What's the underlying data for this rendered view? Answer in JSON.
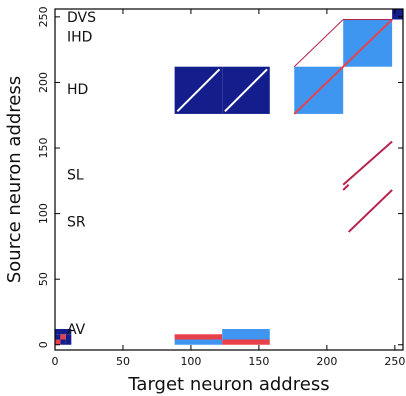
{
  "chart_data": {
    "type": "heatmap",
    "xlabel": "Target neuron address",
    "ylabel": "Source neuron address",
    "xlim": [
      0,
      256
    ],
    "ylim": [
      -4,
      256
    ],
    "xticks": [
      0,
      50,
      100,
      150,
      200,
      250
    ],
    "yticks": [
      0,
      50,
      100,
      150,
      200,
      250
    ],
    "grid": false,
    "colors": {
      "dark_blue": "#141d8c",
      "light_blue": "#3e96f0",
      "red": "#e8414a",
      "crimson": "#b8234b",
      "white": "#ffffff"
    },
    "region_labels": [
      {
        "text": "DVS",
        "y": 250
      },
      {
        "text": "IHD",
        "y": 235
      },
      {
        "text": "HD",
        "y": 195
      },
      {
        "text": "SL",
        "y": 130
      },
      {
        "text": "SR",
        "y": 94
      },
      {
        "text": "AV",
        "y": 12
      }
    ],
    "blocks": [
      {
        "x": [
          88,
          123
        ],
        "y": [
          176,
          212
        ],
        "color": "dark_blue"
      },
      {
        "x": [
          123,
          158
        ],
        "y": [
          176,
          212
        ],
        "color": "dark_blue"
      },
      {
        "x": [
          176,
          212
        ],
        "y": [
          176,
          212
        ],
        "color": "light_blue"
      },
      {
        "x": [
          212,
          248
        ],
        "y": [
          212,
          248
        ],
        "color": "light_blue"
      },
      {
        "x": [
          88,
          123
        ],
        "y": [
          0,
          4
        ],
        "color": "light_blue"
      },
      {
        "x": [
          88,
          123
        ],
        "y": [
          4,
          8
        ],
        "color": "red"
      },
      {
        "x": [
          123,
          158
        ],
        "y": [
          0,
          4
        ],
        "color": "red"
      },
      {
        "x": [
          123,
          158
        ],
        "y": [
          4,
          12
        ],
        "color": "light_blue"
      },
      {
        "x": [
          248,
          256
        ],
        "y": [
          248,
          256
        ],
        "color": "dark_blue"
      },
      {
        "x": [
          0,
          4
        ],
        "y": [
          0,
          4
        ],
        "color": "red"
      },
      {
        "x": [
          4,
          8
        ],
        "y": [
          0,
          4
        ],
        "color": "dark_blue"
      },
      {
        "x": [
          0,
          4
        ],
        "y": [
          4,
          8
        ],
        "color": "dark_blue"
      },
      {
        "x": [
          4,
          8
        ],
        "y": [
          4,
          8
        ],
        "color": "red"
      },
      {
        "x": [
          8,
          12
        ],
        "y": [
          0,
          4
        ],
        "color": "dark_blue"
      },
      {
        "x": [
          8,
          12
        ],
        "y": [
          4,
          8
        ],
        "color": "dark_blue"
      },
      {
        "x": [
          0,
          12
        ],
        "y": [
          8,
          12
        ],
        "color": "dark_blue"
      }
    ],
    "lines": [
      {
        "x": [
          90,
          121
        ],
        "y": [
          178,
          210
        ],
        "color": "white",
        "width": 2
      },
      {
        "x": [
          125,
          156
        ],
        "y": [
          178,
          210
        ],
        "color": "white",
        "width": 2
      },
      {
        "x": [
          176,
          248
        ],
        "y": [
          176,
          248
        ],
        "color": "red",
        "width": 2
      },
      {
        "x": [
          176,
          212
        ],
        "y": [
          212,
          248
        ],
        "color": "crimson",
        "width": 1
      },
      {
        "x": [
          212,
          248
        ],
        "y": [
          248,
          248
        ],
        "color": "crimson",
        "width": 1
      },
      {
        "x": [
          212,
          248
        ],
        "y": [
          122,
          155
        ],
        "color": "crimson",
        "width": 2
      },
      {
        "x": [
          212,
          216
        ],
        "y": [
          118,
          122
        ],
        "color": "crimson",
        "width": 2
      },
      {
        "x": [
          216,
          248
        ],
        "y": [
          86,
          118
        ],
        "color": "crimson",
        "width": 2
      }
    ]
  }
}
